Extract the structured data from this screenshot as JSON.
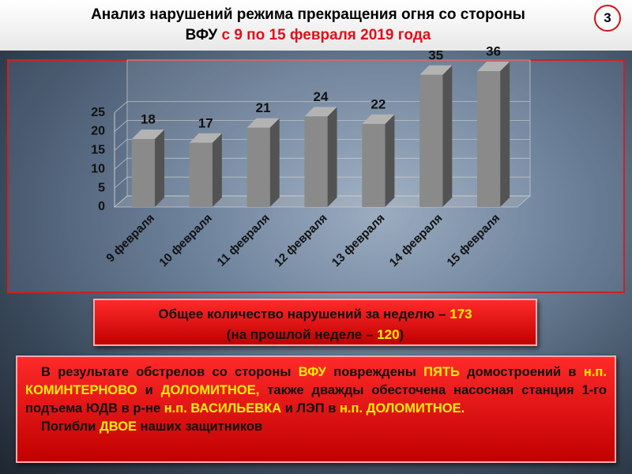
{
  "header": {
    "title_line1": "Анализ нарушений режима прекращения огня со стороны",
    "title_line2_a": "ВФУ",
    "title_line2_b": "с 9 по 15 февраля 2019 года",
    "slide_number": "3"
  },
  "chart_data": {
    "type": "bar",
    "categories": [
      "9 февраля",
      "10 февраля",
      "11 февраля",
      "12 февраля",
      "13 февраля",
      "14 февраля",
      "15 февраля"
    ],
    "values": [
      18,
      17,
      21,
      24,
      22,
      35,
      36
    ],
    "color": "#8a8a8a",
    "ylim": [
      0,
      36
    ],
    "yticks": [
      0,
      5,
      10,
      15,
      20,
      25
    ],
    "grid": true
  },
  "summary": {
    "line1": [
      "Общее количество нарушений за неделю – ",
      "173"
    ],
    "line2": [
      "(на прошлой неделе – ",
      "120",
      ")"
    ]
  },
  "details": {
    "paragraph": [
      "В результате обстрелов со стороны ",
      "ВФУ",
      " повреждены ",
      "ПЯТЬ",
      " домостроений в ",
      "н.п. КОМИНТЕРНОВО",
      " и ",
      "ДОЛОМИТНОЕ,",
      " также дважды обесточена насосная станция 1-го подъема ЮДВ в р-не ",
      "н.п. ВАСИЛЬЕВКА",
      " и ЛЭП в ",
      "н.п. ДОЛОМИТНОЕ."
    ],
    "casualties": [
      "Погибли ",
      "ДВОЕ",
      " наших защитников"
    ]
  }
}
